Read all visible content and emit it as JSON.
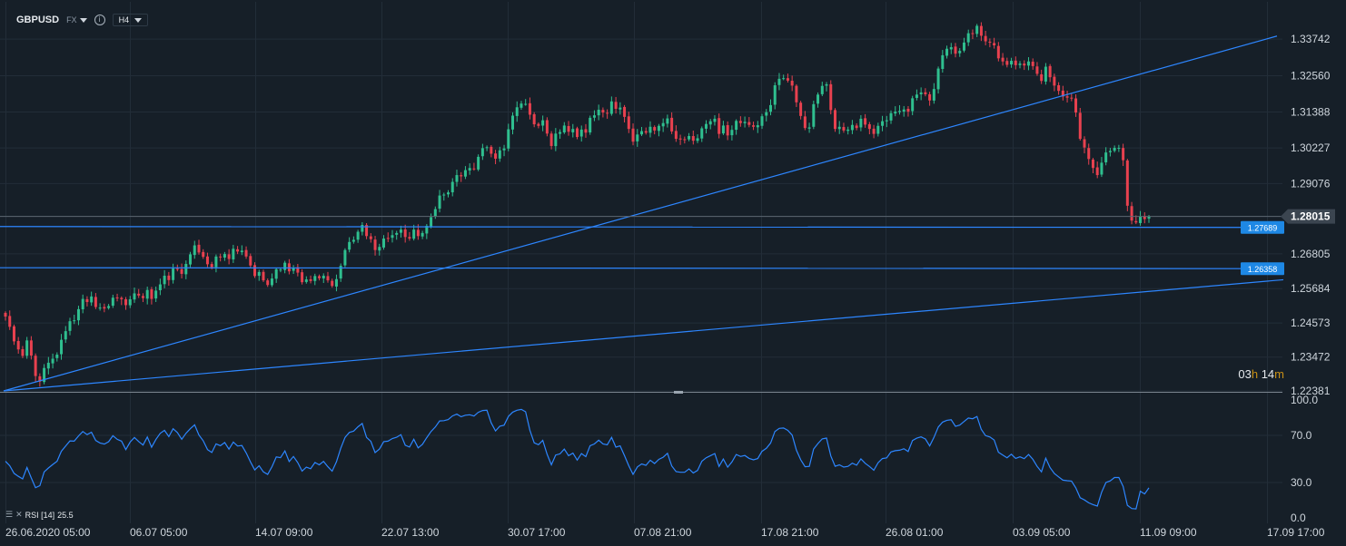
{
  "header": {
    "symbol": "GBPUSD",
    "market": "FX",
    "info_icon": "info-icon",
    "timeframe": "H4"
  },
  "countdown": {
    "hours": "03",
    "h": "h",
    "minutes": "14",
    "m": "m"
  },
  "rsi": {
    "label": "RSI [14]",
    "value": "25.5"
  },
  "colors": {
    "bg": "#161f28",
    "up": "#2fbf8f",
    "down": "#e8414f",
    "line": "#2d86ff",
    "rsi": "#2d86ff",
    "countdown": "#c89016"
  },
  "chart_data": [
    {
      "type": "candlestick",
      "symbol": "GBPUSD",
      "timeframe": "H4",
      "y_ticks": [
        "1.33742",
        "1.32560",
        "1.31388",
        "1.30227",
        "1.29076",
        "1.28015",
        "1.26805",
        "1.25684",
        "1.24573",
        "1.23472",
        "1.22381"
      ],
      "y_range": [
        1.2238,
        1.3436
      ],
      "x_ticks": [
        "26.06.2020 05:00",
        "06.07 05:00",
        "14.07 09:00",
        "22.07 13:00",
        "30.07 17:00",
        "07.08 21:00",
        "17.08 21:00",
        "26.08 01:00",
        "03.09 05:00",
        "11.09 09:00",
        "17.09 17:00"
      ],
      "last_price": "1.28015",
      "horizontal_levels": [
        {
          "price": "1.27689",
          "value": 1.27689
        },
        {
          "price": "1.26358",
          "value": 1.26358
        }
      ],
      "trendlines": [
        {
          "from": [
            "25.06.2020",
            1.2238
          ],
          "to": [
            "17.09",
            1.3384
          ]
        },
        {
          "from": [
            "25.06.2020",
            1.2238
          ],
          "to": [
            "17.09",
            1.2597
          ]
        }
      ],
      "closes": [
        1.2478,
        1.2445,
        1.2398,
        1.2372,
        1.2351,
        1.2401,
        1.2352,
        1.2286,
        1.2268,
        1.2312,
        1.2329,
        1.2342,
        1.2355,
        1.2403,
        1.2431,
        1.2463,
        1.2466,
        1.2502,
        1.2535,
        1.2525,
        1.2543,
        1.2509,
        1.2507,
        1.2504,
        1.2512,
        1.2539,
        1.2538,
        1.2534,
        1.2515,
        1.2534,
        1.2553,
        1.2546,
        1.2538,
        1.2564,
        1.2535,
        1.2562,
        1.2582,
        1.261,
        1.2596,
        1.2633,
        1.2632,
        1.2616,
        1.2648,
        1.2679,
        1.2708,
        1.2685,
        1.2671,
        1.2647,
        1.2637,
        1.2672,
        1.2669,
        1.268,
        1.2664,
        1.2697,
        1.2688,
        1.2691,
        1.2672,
        1.2643,
        1.2609,
        1.2622,
        1.2595,
        1.258,
        1.2601,
        1.2631,
        1.263,
        1.2652,
        1.2624,
        1.2636,
        1.262,
        1.2589,
        1.2598,
        1.2593,
        1.2609,
        1.2602,
        1.261,
        1.2595,
        1.2577,
        1.2599,
        1.2642,
        1.2693,
        1.2719,
        1.2726,
        1.2752,
        1.2774,
        1.2738,
        1.2728,
        1.2693,
        1.2703,
        1.273,
        1.2731,
        1.2741,
        1.2748,
        1.2759,
        1.2735,
        1.273,
        1.2759,
        1.2738,
        1.2748,
        1.2771,
        1.2799,
        1.2825,
        1.2869,
        1.2872,
        1.2879,
        1.2913,
        1.2935,
        1.2931,
        1.2951,
        1.2958,
        1.2955,
        1.2994,
        1.3022,
        1.3025,
        1.3004,
        1.2988,
        1.3015,
        1.3021,
        1.3083,
        1.3127,
        1.3154,
        1.3166,
        1.3165,
        1.313,
        1.3099,
        1.3094,
        1.3112,
        1.3069,
        1.3029,
        1.3069,
        1.3074,
        1.3095,
        1.3075,
        1.3084,
        1.3058,
        1.3082,
        1.3072,
        1.312,
        1.3128,
        1.3146,
        1.3137,
        1.3134,
        1.3173,
        1.3149,
        1.3153,
        1.3123,
        1.3084,
        1.3043,
        1.3066,
        1.3077,
        1.3072,
        1.3091,
        1.3079,
        1.3094,
        1.3103,
        1.3118,
        1.3076,
        1.3052,
        1.305,
        1.305,
        1.3061,
        1.3046,
        1.3054,
        1.3086,
        1.31,
        1.3109,
        1.3117,
        1.3068,
        1.3095,
        1.3063,
        1.3081,
        1.311,
        1.3103,
        1.3107,
        1.3097,
        1.3091,
        1.3096,
        1.3125,
        1.3138,
        1.3161,
        1.3225,
        1.3246,
        1.3248,
        1.324,
        1.3224,
        1.317,
        1.3126,
        1.3087,
        1.3089,
        1.3164,
        1.3195,
        1.3223,
        1.3228,
        1.3145,
        1.3084,
        1.3091,
        1.3079,
        1.3082,
        1.3097,
        1.3087,
        1.3117,
        1.3098,
        1.3084,
        1.3068,
        1.3094,
        1.3109,
        1.3112,
        1.3135,
        1.314,
        1.3142,
        1.3147,
        1.314,
        1.3183,
        1.3195,
        1.3202,
        1.3196,
        1.3176,
        1.3213,
        1.3279,
        1.3322,
        1.3343,
        1.3348,
        1.3327,
        1.3336,
        1.3363,
        1.3393,
        1.3391,
        1.3417,
        1.3385,
        1.3367,
        1.3363,
        1.3354,
        1.3312,
        1.3302,
        1.3291,
        1.3304,
        1.329,
        1.3295,
        1.3289,
        1.3302,
        1.3287,
        1.3262,
        1.3239,
        1.3285,
        1.3251,
        1.3224,
        1.3207,
        1.3189,
        1.3185,
        1.3183,
        1.3137,
        1.3052,
        1.3024,
        1.2987,
        1.2958,
        1.2935,
        1.2975,
        1.3008,
        1.3013,
        1.3023,
        1.3023,
        1.2983,
        1.2836,
        1.2788,
        1.2782,
        1.2801,
        1.2793,
        1.2801
      ],
      "rsi": {
        "name": "RSI [14]",
        "current": 25.5,
        "y_ticks": [
          "100.0",
          "70.0",
          "30.0",
          "0.0"
        ],
        "y_range": [
          0,
          100
        ],
        "values": [
          48.0,
          44.2,
          37.8,
          35.2,
          33.1,
          42.8,
          33.9,
          25.6,
          27.3,
          39.0,
          42.3,
          45.3,
          48.0,
          56.5,
          60.9,
          65.3,
          65.1,
          69.5,
          73.2,
          70.6,
          72.6,
          65.6,
          63.5,
          62.6,
          64.6,
          69.7,
          66.6,
          65.1,
          57.9,
          64.3,
          68.2,
          64.8,
          61.8,
          68.6,
          59.9,
          66.6,
          71.7,
          74.2,
          68.9,
          75.6,
          72.4,
          66.7,
          71.8,
          75.6,
          78.9,
          70.3,
          65.5,
          57.9,
          55.5,
          62.8,
          61.2,
          63.9,
          58.3,
          64.3,
          60.9,
          61.4,
          55.1,
          47.5,
          40.7,
          44.2,
          39.0,
          36.9,
          43.5,
          51.7,
          51.1,
          56.8,
          47.8,
          52.1,
          46.9,
          39.7,
          43.0,
          41.7,
          47.0,
          45.0,
          47.9,
          43.4,
          39.6,
          47.5,
          59.1,
          68.2,
          72.5,
          73.6,
          77.2,
          80.1,
          68.2,
          64.9,
          55.4,
          58.4,
          64.7,
          65.1,
          67.3,
          68.4,
          70.6,
          61.6,
          60.1,
          66.7,
          59.4,
          62.3,
          68.0,
          73.3,
          77.1,
          82.2,
          82.5,
          83.4,
          86.5,
          88.0,
          85.8,
          87.1,
          87.5,
          86.4,
          89.5,
          91.1,
          91.3,
          80.6,
          73.8,
          77.8,
          78.6,
          86.1,
          89.7,
          91.3,
          92.0,
          90.0,
          74.4,
          63.6,
          62.1,
          65.8,
          53.9,
          45.0,
          53.3,
          54.3,
          58.4,
          52.8,
          54.9,
          49.0,
          54.5,
          51.9,
          61.2,
          62.7,
          65.9,
          62.8,
          62.0,
          68.3,
          60.0,
          61.1,
          52.8,
          44.2,
          36.9,
          43.2,
          45.8,
          44.5,
          48.9,
          46.1,
          49.6,
          51.5,
          54.8,
          44.1,
          39.2,
          38.7,
          38.7,
          41.5,
          38.1,
          40.2,
          48.1,
          51.0,
          52.8,
          54.5,
          43.6,
          49.9,
          43.0,
          47.5,
          53.8,
          52.1,
          52.9,
          50.5,
          49.2,
          50.3,
          56.5,
          59.0,
          63.5,
          73.3,
          75.9,
          76.2,
          74.2,
          70.2,
          57.4,
          49.3,
          43.4,
          43.7,
          58.4,
          63.1,
          67.0,
          67.7,
          52.5,
          43.8,
          45.0,
          43.1,
          43.7,
          46.4,
          44.7,
          50.1,
          46.3,
          43.6,
          40.4,
          46.8,
          50.3,
          50.9,
          55.9,
          57.0,
          57.4,
          58.6,
          56.3,
          65.6,
          67.6,
          68.7,
          66.9,
          61.0,
          68.2,
          77.1,
          81.2,
          82.8,
          83.2,
          77.6,
          78.7,
          81.8,
          84.7,
          84.1,
          86.0,
          75.1,
          69.8,
          68.6,
          66.1,
          55.7,
          53.3,
          51.0,
          54.0,
          50.5,
          51.8,
          50.2,
          53.8,
          49.7,
          43.7,
          39.1,
          50.6,
          42.7,
          37.6,
          34.8,
          32.0,
          31.5,
          31.2,
          25.5,
          17.1,
          15.2,
          12.8,
          11.2,
          10.0,
          21.7,
          30.0,
          31.4,
          34.2,
          34.2,
          26.7,
          10.7,
          7.9,
          7.6,
          22.6,
          20.3,
          25.5
        ]
      }
    }
  ]
}
